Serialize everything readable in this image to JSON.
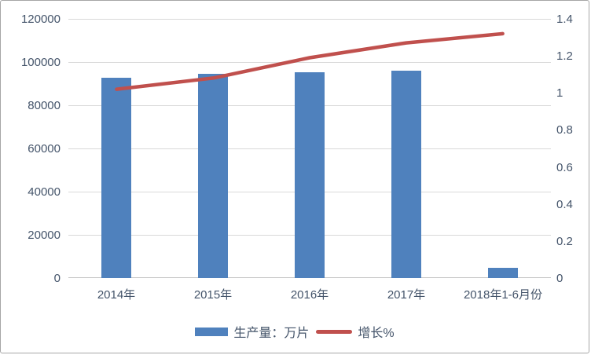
{
  "chart_data": {
    "type": "bar",
    "subtype": "combo-bar-line",
    "title": "",
    "categories": [
      "2014年",
      "2015年",
      "2016年",
      "2017年",
      "2018年1-6月份"
    ],
    "series": [
      {
        "name": "生产量：万片",
        "type": "bar",
        "axis": "left",
        "color": "#4f81bd",
        "values": [
          92700,
          94700,
          95400,
          96100,
          4800
        ]
      },
      {
        "name": "增长%",
        "type": "line",
        "axis": "right",
        "color": "#c0504d",
        "values": [
          1.02,
          1.08,
          1.19,
          1.27,
          1.32
        ]
      }
    ],
    "left_axis": {
      "min": 0,
      "max": 120000,
      "step": 20000,
      "tick_labels": [
        "0",
        "20000",
        "40000",
        "60000",
        "80000",
        "100000",
        "120000"
      ]
    },
    "right_axis": {
      "min": 0,
      "max": 1.4,
      "step": 0.2,
      "tick_labels": [
        "0",
        "0.2",
        "0.4",
        "0.6",
        "0.8",
        "1",
        "1.2",
        "1.4"
      ]
    },
    "grid": true,
    "legend_position": "bottom",
    "colors": {
      "gridline": "#d9d9d9",
      "axis_line": "#c6c6c6",
      "tick_label": "#44546a",
      "background": "#ffffff",
      "frame_border": "#a6a6a6"
    }
  }
}
